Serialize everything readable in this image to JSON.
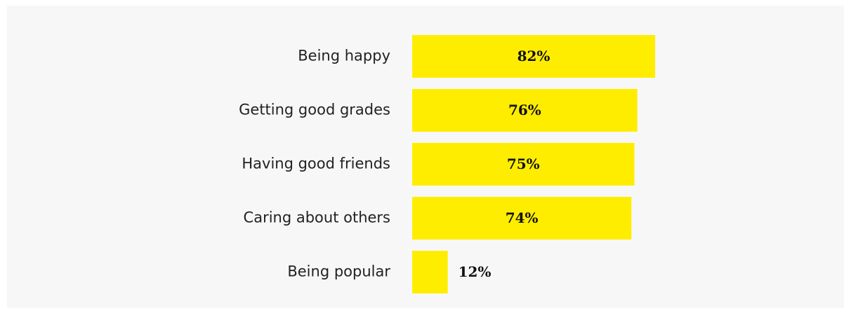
{
  "chart_data": {
    "type": "bar",
    "orientation": "horizontal",
    "categories": [
      "Being happy",
      "Getting good grades",
      "Having good friends",
      "Caring about others",
      "Being popular"
    ],
    "values": [
      82,
      76,
      75,
      74,
      12
    ],
    "value_labels": [
      "82%",
      "76%",
      "75%",
      "74%",
      "12%"
    ],
    "color": "#ffed00"
  }
}
